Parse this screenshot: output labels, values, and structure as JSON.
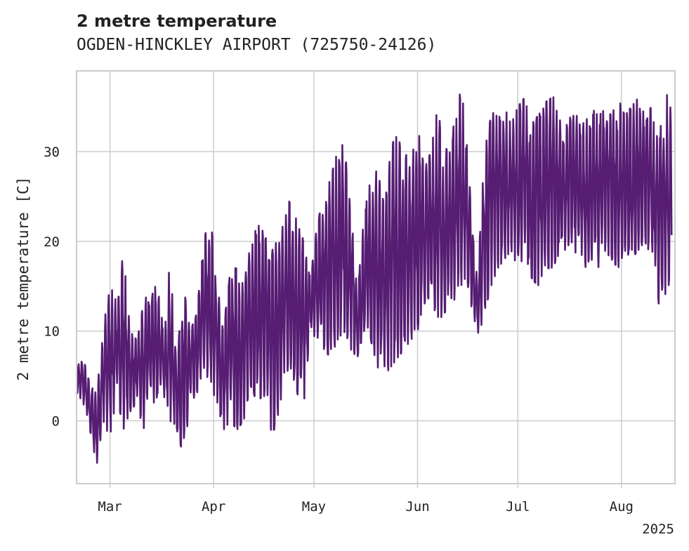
{
  "header": {
    "title": "2 metre temperature",
    "subtitle": "OGDEN-HINCKLEY AIRPORT (725750-24126)"
  },
  "colors": {
    "series": "#561d73",
    "grid": "#cccccc",
    "frame": "#cccccc",
    "text": "#222222"
  },
  "chart_data": {
    "type": "line",
    "title": "2 metre temperature",
    "subtitle": "OGDEN-HINCKLEY AIRPORT (725750-24126)",
    "xlabel": "",
    "ylabel": "2 metre temperature [C]",
    "year_label": "2025",
    "xlim": [
      "2025-02-19",
      "2025-08-17"
    ],
    "ylim": [
      -7,
      39
    ],
    "grid": true,
    "legend": "none",
    "x_ticks": [
      {
        "date": "2025-03-01",
        "label": "Mar"
      },
      {
        "date": "2025-04-01",
        "label": "Apr"
      },
      {
        "date": "2025-05-01",
        "label": "May"
      },
      {
        "date": "2025-06-01",
        "label": "Jun"
      },
      {
        "date": "2025-07-01",
        "label": "Jul"
      },
      {
        "date": "2025-08-01",
        "label": "Aug"
      }
    ],
    "y_ticks": [
      0,
      10,
      20,
      30
    ],
    "series": [
      {
        "x": [
          "2025-02-19",
          "2025-02-21",
          "2025-02-23",
          "2025-02-25",
          "2025-02-27",
          "2025-03-01",
          "2025-03-03",
          "2025-03-05",
          "2025-03-07",
          "2025-03-09",
          "2025-03-11",
          "2025-03-13",
          "2025-03-15",
          "2025-03-17",
          "2025-03-19",
          "2025-03-21",
          "2025-03-23",
          "2025-03-25",
          "2025-03-27",
          "2025-03-29",
          "2025-03-31",
          "2025-04-02",
          "2025-04-04",
          "2025-04-06",
          "2025-04-08",
          "2025-04-10",
          "2025-04-12",
          "2025-04-14",
          "2025-04-16",
          "2025-04-18",
          "2025-04-20",
          "2025-04-22",
          "2025-04-24",
          "2025-04-26",
          "2025-04-28",
          "2025-04-30",
          "2025-05-02",
          "2025-05-04",
          "2025-05-06",
          "2025-05-08",
          "2025-05-10",
          "2025-05-12",
          "2025-05-14",
          "2025-05-16",
          "2025-05-18",
          "2025-05-20",
          "2025-05-22",
          "2025-05-24",
          "2025-05-26",
          "2025-05-28",
          "2025-05-30",
          "2025-06-01",
          "2025-06-03",
          "2025-06-05",
          "2025-06-07",
          "2025-06-09",
          "2025-06-11",
          "2025-06-13",
          "2025-06-15",
          "2025-06-17",
          "2025-06-19",
          "2025-06-21",
          "2025-06-23",
          "2025-06-25",
          "2025-06-27",
          "2025-06-29",
          "2025-07-01",
          "2025-07-03",
          "2025-07-05",
          "2025-07-07",
          "2025-07-09",
          "2025-07-11",
          "2025-07-13",
          "2025-07-15",
          "2025-07-17",
          "2025-07-19",
          "2025-07-21",
          "2025-07-23",
          "2025-07-25",
          "2025-07-27",
          "2025-07-29",
          "2025-07-31",
          "2025-08-02",
          "2025-08-04",
          "2025-08-06",
          "2025-08-08",
          "2025-08-10",
          "2025-08-12",
          "2025-08-14",
          "2025-08-16"
        ],
        "min": [
          3,
          2,
          -1,
          -5,
          0,
          -2,
          3,
          -1,
          1,
          2,
          -1,
          2,
          2,
          3,
          0,
          -1,
          -4,
          2,
          3,
          6,
          4,
          2,
          -1,
          0,
          -1,
          0,
          4,
          2,
          3,
          -1,
          -1,
          5,
          6,
          3,
          2,
          10,
          9,
          8,
          7,
          9,
          10,
          8,
          7,
          10,
          9,
          6,
          5,
          6,
          7,
          8,
          9,
          10,
          13,
          14,
          11,
          12,
          13,
          14,
          16,
          13,
          9,
          12,
          15,
          17,
          18,
          19,
          17,
          18,
          16,
          15,
          17,
          17,
          18,
          19,
          20,
          18,
          17,
          18,
          17,
          19,
          18,
          17,
          19,
          18,
          19,
          20,
          18,
          13,
          14,
          16
        ],
        "max": [
          6,
          7,
          4,
          3,
          10,
          16,
          13,
          19,
          10,
          9,
          13,
          15,
          16,
          10,
          18,
          7,
          15,
          10,
          12,
          20,
          23,
          15,
          11,
          17,
          17,
          15,
          20,
          22,
          21,
          19,
          20,
          22,
          25,
          22,
          20,
          16,
          22,
          25,
          27,
          30,
          31,
          24,
          14,
          23,
          27,
          28,
          24,
          30,
          33,
          29,
          31,
          33,
          28,
          30,
          35,
          30,
          31,
          37,
          35,
          24,
          16,
          30,
          34,
          35,
          35,
          33,
          35,
          36,
          33,
          34,
          35,
          37,
          34,
          33,
          34,
          34,
          33,
          35,
          34,
          35,
          34,
          36,
          34,
          35,
          36,
          34,
          35,
          31,
          36,
          37
        ]
      }
    ]
  }
}
